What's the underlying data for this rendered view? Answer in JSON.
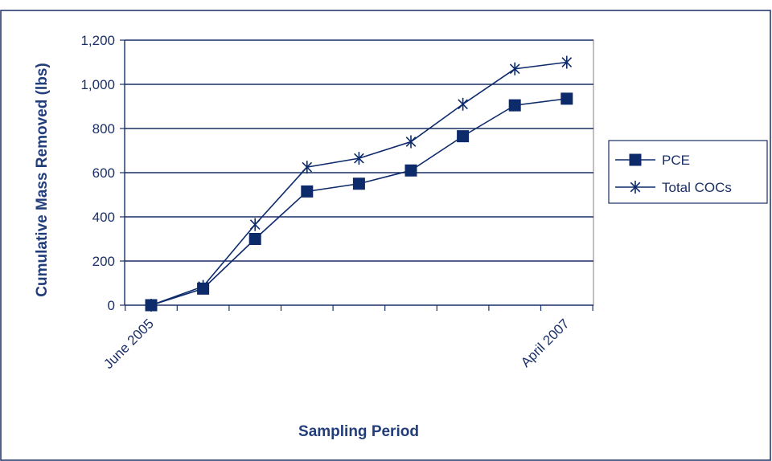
{
  "chart_data": {
    "type": "line",
    "xlabel": "Sampling Period",
    "ylabel": "Cumulative Mass Removed (lbs)",
    "x_tick_labels": [
      {
        "index": 0,
        "label": "June 2005"
      },
      {
        "index": 8,
        "label": "April 2007"
      }
    ],
    "ylim": [
      0,
      1200
    ],
    "y_ticks": [
      0,
      200,
      400,
      600,
      800,
      1000,
      1200
    ],
    "y_tick_labels": [
      "0",
      "200",
      "400",
      "600",
      "800",
      "1,000",
      "1,200"
    ],
    "grid": true,
    "legend_position": "right",
    "series": [
      {
        "name": "PCE",
        "marker": "square",
        "color": "#0d2a6b",
        "values": [
          0,
          75,
          300,
          515,
          550,
          610,
          765,
          905,
          935
        ]
      },
      {
        "name": "Total COCs",
        "marker": "asterisk",
        "color": "#0d2a6b",
        "values": [
          0,
          85,
          365,
          625,
          665,
          740,
          910,
          1070,
          1100
        ]
      }
    ]
  }
}
